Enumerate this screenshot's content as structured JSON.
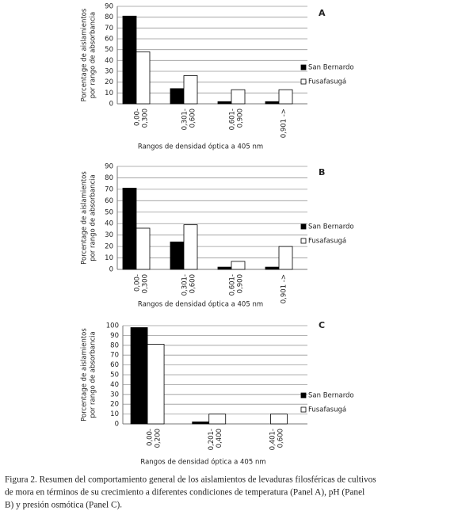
{
  "chart_data": [
    {
      "type": "bar",
      "panel": "A",
      "categories": [
        [
          "0,00-",
          "0,300"
        ],
        [
          "0,301-",
          "0,600"
        ],
        [
          "0,601-",
          "0,900"
        ],
        [
          "0,901 ->"
        ]
      ],
      "series": [
        {
          "name": "San Bernardo",
          "color": "#000000",
          "values": [
            81,
            14,
            2,
            2
          ]
        },
        {
          "name": "Fusafasugá",
          "color": "#ffffff",
          "values": [
            48,
            26,
            13,
            13
          ]
        }
      ],
      "xlabel": "Rangos de densidad óptica a 405 nm",
      "ylabel": [
        "Porcentage de aislamientos",
        "por rango de absorbancia"
      ],
      "ylim": [
        0,
        90
      ],
      "yticks": [
        0,
        10,
        20,
        30,
        40,
        50,
        60,
        70,
        80,
        90
      ],
      "grid": true
    },
    {
      "type": "bar",
      "panel": "B",
      "categories": [
        [
          "0,00-",
          "0,300"
        ],
        [
          "0,301-",
          "0,600"
        ],
        [
          "0,601-",
          "0,900"
        ],
        [
          "0,901 ->"
        ]
      ],
      "series": [
        {
          "name": "San Bernardo",
          "color": "#000000",
          "values": [
            71,
            24,
            2,
            2
          ]
        },
        {
          "name": "Fusafasugá",
          "color": "#ffffff",
          "values": [
            36,
            39,
            7,
            20
          ]
        }
      ],
      "xlabel": "Rangos de densidad óptica a 405 nm",
      "ylabel": [
        "Porcentage de aislamientos",
        "por rango de absorbancia"
      ],
      "ylim": [
        0,
        90
      ],
      "yticks": [
        0,
        10,
        20,
        30,
        40,
        50,
        60,
        70,
        80,
        90
      ],
      "grid": true
    },
    {
      "type": "bar",
      "panel": "C",
      "categories": [
        [
          "0,00-",
          "0,200"
        ],
        [
          "0,201-",
          "0,400"
        ],
        [
          "0,401-",
          "0,600"
        ]
      ],
      "series": [
        {
          "name": "San Bernardo",
          "color": "#000000",
          "values": [
            98,
            2,
            0
          ]
        },
        {
          "name": "Fusafasugá",
          "color": "#ffffff",
          "values": [
            81,
            10,
            10
          ]
        }
      ],
      "xlabel": "Rangos de densidad óptica a 405 nm",
      "ylabel": [
        "Porcentage de aislamientos",
        "por rango de absorbancia"
      ],
      "ylim": [
        0,
        100
      ],
      "yticks": [
        0,
        10,
        20,
        30,
        40,
        50,
        60,
        70,
        80,
        90,
        100
      ],
      "grid": true
    }
  ],
  "caption": [
    "Figura 2. Resumen del comportamiento general de los aislamientos de levaduras filosféricas de cultivos",
    "de mora en términos de su crecimiento a diferentes condiciones de temperatura (Panel A), pH (Panel",
    "B) y presión osmótica (Panel C)."
  ]
}
